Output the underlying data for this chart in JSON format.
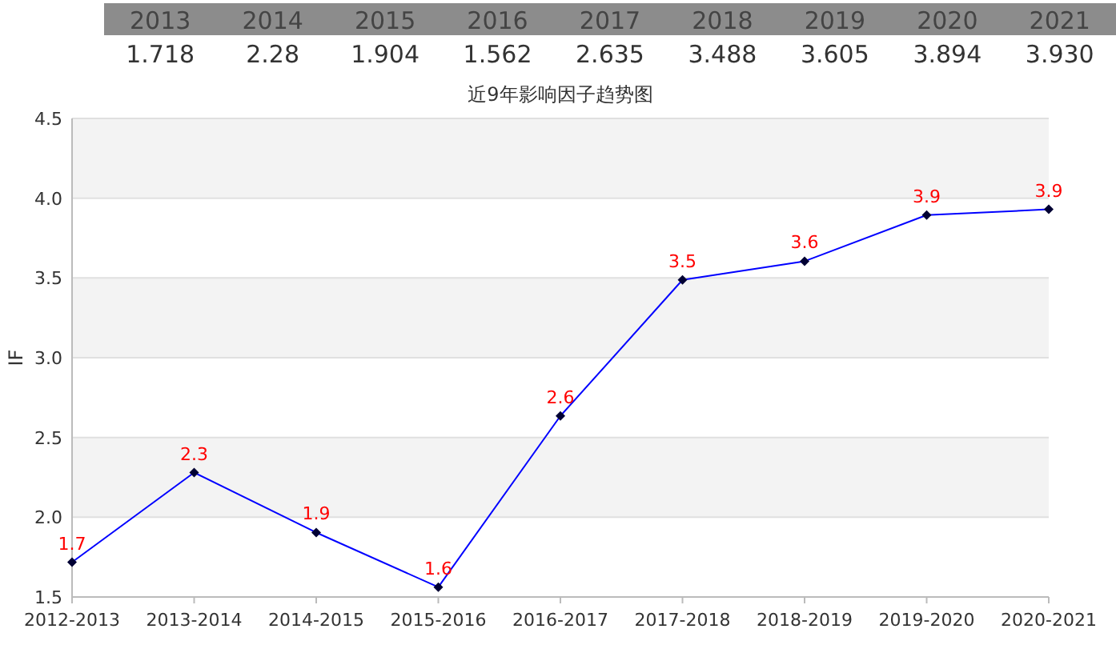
{
  "chart_data": {
    "type": "line",
    "title": "近9年影响因子趋势图",
    "ylabel": "IF",
    "annotations": [
      "2013",
      "2014",
      "2015",
      "2016",
      "2017",
      "2018",
      "2019",
      "2020",
      "2021",
      "1.718",
      "2.28",
      "1.904",
      "1.562",
      "2.635",
      "3.488",
      "3.605",
      "3.894",
      "3.930"
    ],
    "categories": [
      "2012-2013",
      "2013-2014",
      "2014-2015",
      "2015-2016",
      "2016-2017",
      "2017-2018",
      "2018-2019",
      "2019-2020",
      "2020-2021"
    ],
    "values": [
      1.718,
      2.28,
      1.904,
      1.562,
      2.635,
      3.488,
      3.605,
      3.894,
      3.93
    ],
    "value_labels": [
      "1.7",
      "2.3",
      "1.9",
      "1.6",
      "2.6",
      "3.5",
      "3.6",
      "3.9",
      "3.9"
    ],
    "color": "#0000ff",
    "marker": "diamond",
    "grid": "y",
    "ylim": [
      1.5,
      4.5
    ],
    "yticks": [
      1.5,
      {
        "value": 2,
        "label": "2.0"
      },
      2.5,
      {
        "value": 3,
        "label": "3.0"
      },
      3.5,
      {
        "value": 4,
        "label": "4.0"
      },
      {
        "value": 4.5,
        "label": "4.5"
      }
    ]
  }
}
